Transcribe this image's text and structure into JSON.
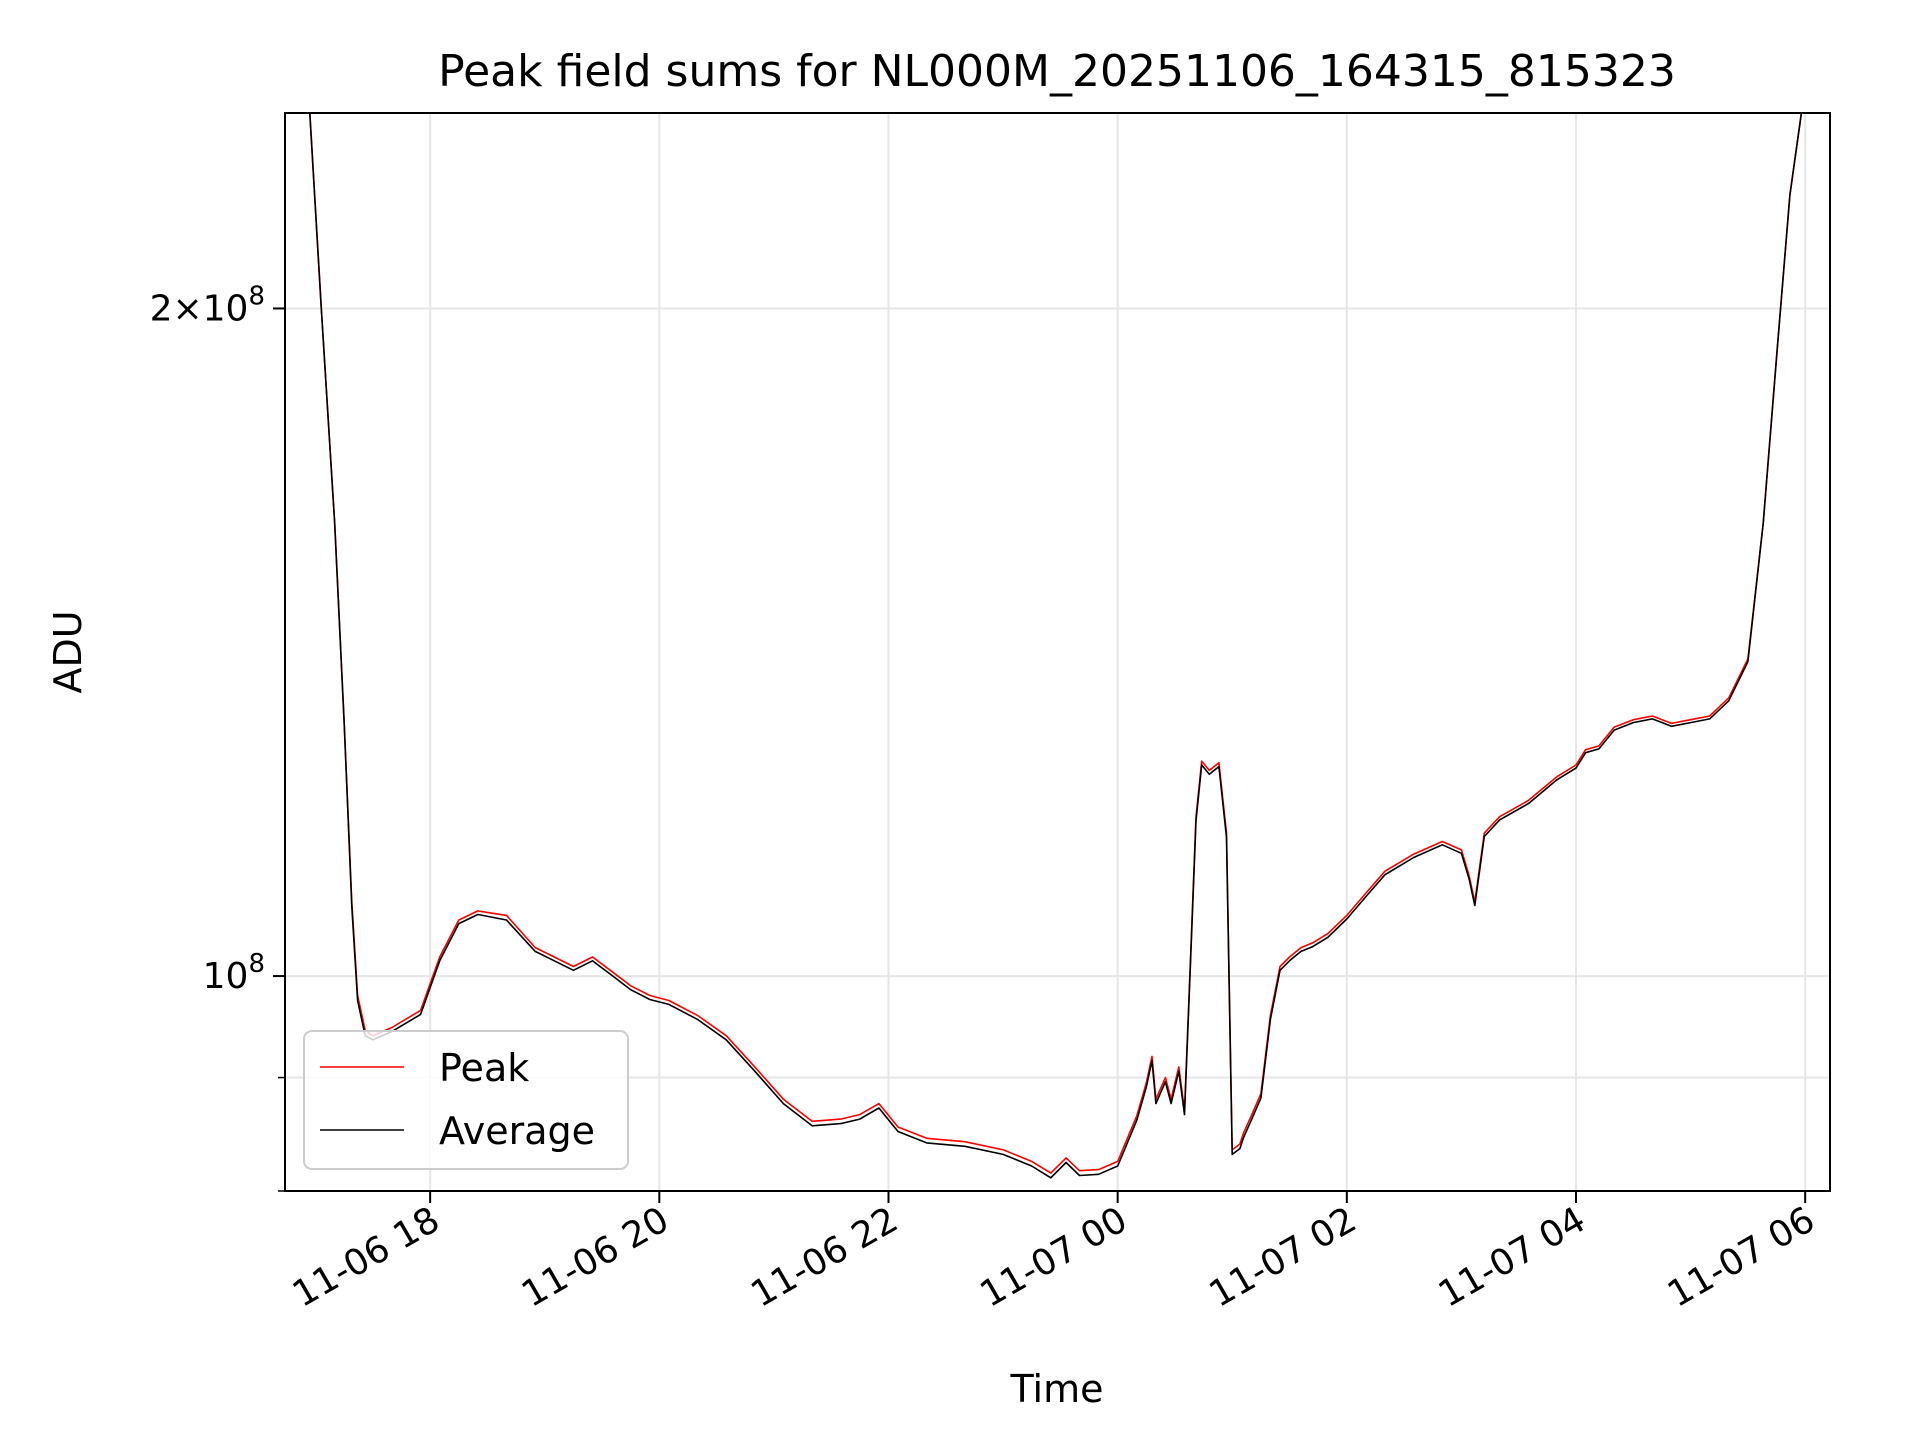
{
  "chart_data": {
    "type": "line",
    "title": "Peak field sums for NL000M_20251106_164315_815323",
    "xlabel": "Time",
    "ylabel": "ADU",
    "yscale": "log",
    "grid": true,
    "legend_placement": "lower-left",
    "xlim": [
      "2025-11-06 16:44",
      "2025-11-07 06:13"
    ],
    "ylim": [
      80000000,
      245000000
    ],
    "x_ticks": [
      {
        "value": "2025-11-06 18:00",
        "label": "11-06 18"
      },
      {
        "value": "2025-11-06 20:00",
        "label": "11-06 20"
      },
      {
        "value": "2025-11-06 22:00",
        "label": "11-06 22"
      },
      {
        "value": "2025-11-07 00:00",
        "label": "11-07 00"
      },
      {
        "value": "2025-11-07 02:00",
        "label": "11-07 02"
      },
      {
        "value": "2025-11-07 04:00",
        "label": "11-07 04"
      },
      {
        "value": "2025-11-07 06:00",
        "label": "11-07 06"
      }
    ],
    "y_major_ticks": [
      {
        "value": 100000000,
        "base": "10",
        "exp": "8"
      },
      {
        "value": 200000000,
        "base": "2×10",
        "exp": "8"
      }
    ],
    "y_minor_ticks": [
      80000000,
      90000000
    ],
    "series": [
      {
        "name": "Peak",
        "color": "#ff0000",
        "x": [
          "2025-11-06 16:44",
          "2025-11-06 16:57",
          "2025-11-06 17:03",
          "2025-11-06 17:10",
          "2025-11-06 17:15",
          "2025-11-06 17:19",
          "2025-11-06 17:22",
          "2025-11-06 17:26",
          "2025-11-06 17:30",
          "2025-11-06 17:40",
          "2025-11-06 17:55",
          "2025-11-06 18:05",
          "2025-11-06 18:15",
          "2025-11-06 18:25",
          "2025-11-06 18:40",
          "2025-11-06 18:55",
          "2025-11-06 19:05",
          "2025-11-06 19:15",
          "2025-11-06 19:25",
          "2025-11-06 19:35",
          "2025-11-06 19:45",
          "2025-11-06 19:55",
          "2025-11-06 20:05",
          "2025-11-06 20:20",
          "2025-11-06 20:35",
          "2025-11-06 20:50",
          "2025-11-06 21:05",
          "2025-11-06 21:20",
          "2025-11-06 21:35",
          "2025-11-06 21:45",
          "2025-11-06 21:55",
          "2025-11-06 22:05",
          "2025-11-06 22:20",
          "2025-11-06 22:40",
          "2025-11-06 23:00",
          "2025-11-06 23:15",
          "2025-11-06 23:25",
          "2025-11-06 23:33",
          "2025-11-06 23:40",
          "2025-11-06 23:50",
          "2025-11-07 00:00",
          "2025-11-07 00:10",
          "2025-11-07 00:15",
          "2025-11-07 00:18",
          "2025-11-07 00:20",
          "2025-11-07 00:25",
          "2025-11-07 00:28",
          "2025-11-07 00:32",
          "2025-11-07 00:35",
          "2025-11-07 00:38",
          "2025-11-07 00:41",
          "2025-11-07 00:44",
          "2025-11-07 00:48",
          "2025-11-07 00:53",
          "2025-11-07 00:57",
          "2025-11-07 01:00",
          "2025-11-07 01:04",
          "2025-11-07 01:06",
          "2025-11-07 01:10",
          "2025-11-07 01:15",
          "2025-11-07 01:20",
          "2025-11-07 01:25",
          "2025-11-07 01:30",
          "2025-11-07 01:36",
          "2025-11-07 01:42",
          "2025-11-07 01:50",
          "2025-11-07 02:00",
          "2025-11-07 02:10",
          "2025-11-07 02:20",
          "2025-11-07 02:35",
          "2025-11-07 02:50",
          "2025-11-07 03:00",
          "2025-11-07 03:04",
          "2025-11-07 03:07",
          "2025-11-07 03:12",
          "2025-11-07 03:20",
          "2025-11-07 03:35",
          "2025-11-07 03:50",
          "2025-11-07 04:00",
          "2025-11-07 04:05",
          "2025-11-07 04:12",
          "2025-11-07 04:20",
          "2025-11-07 04:30",
          "2025-11-07 04:40",
          "2025-11-07 04:50",
          "2025-11-07 05:00",
          "2025-11-07 05:10",
          "2025-11-07 05:20",
          "2025-11-07 05:30",
          "2025-11-07 05:38",
          "2025-11-07 05:45",
          "2025-11-07 05:52",
          "2025-11-07 05:58",
          "2025-11-07 06:05",
          "2025-11-07 06:13"
        ],
        "values": [
          245000000,
          245000000,
          200000000,
          160000000,
          130000000,
          108000000,
          98000000,
          94500000,
          94000000,
          94800000,
          96500000,
          102000000,
          106000000,
          107000000,
          106500000,
          103000000,
          102000000,
          101000000,
          102000000,
          100500000,
          99000000,
          98000000,
          97500000,
          96000000,
          94000000,
          91000000,
          88000000,
          86000000,
          86200000,
          86600000,
          87600000,
          85500000,
          84500000,
          84200000,
          83500000,
          82500000,
          81500000,
          82800000,
          81700000,
          81800000,
          82500000,
          86500000,
          89500000,
          92000000,
          88000000,
          90000000,
          88000000,
          91000000,
          87000000,
          101000000,
          118000000,
          125000000,
          123800000,
          124800000,
          116000000,
          83500000,
          84000000,
          85000000,
          86500000,
          88500000,
          96000000,
          101000000,
          102000000,
          103000000,
          103500000,
          104500000,
          106500000,
          109000000,
          111500000,
          113500000,
          115000000,
          114000000,
          111000000,
          108000000,
          116000000,
          118000000,
          120000000,
          123000000,
          124500000,
          126500000,
          127000000,
          129500000,
          130500000,
          131000000,
          130000000,
          130500000,
          131000000,
          133500000,
          139000000,
          160000000,
          190000000,
          225000000,
          245000000,
          245000000,
          245000000
        ]
      },
      {
        "name": "Average",
        "color": "#000000",
        "x": [
          "2025-11-06 16:44",
          "2025-11-06 16:57",
          "2025-11-06 17:03",
          "2025-11-06 17:10",
          "2025-11-06 17:15",
          "2025-11-06 17:19",
          "2025-11-06 17:22",
          "2025-11-06 17:26",
          "2025-11-06 17:30",
          "2025-11-06 17:40",
          "2025-11-06 17:55",
          "2025-11-06 18:05",
          "2025-11-06 18:15",
          "2025-11-06 18:25",
          "2025-11-06 18:40",
          "2025-11-06 18:55",
          "2025-11-06 19:05",
          "2025-11-06 19:15",
          "2025-11-06 19:25",
          "2025-11-06 19:35",
          "2025-11-06 19:45",
          "2025-11-06 19:55",
          "2025-11-06 20:05",
          "2025-11-06 20:20",
          "2025-11-06 20:35",
          "2025-11-06 20:50",
          "2025-11-06 21:05",
          "2025-11-06 21:20",
          "2025-11-06 21:35",
          "2025-11-06 21:45",
          "2025-11-06 21:55",
          "2025-11-06 22:05",
          "2025-11-06 22:20",
          "2025-11-06 22:40",
          "2025-11-06 23:00",
          "2025-11-06 23:15",
          "2025-11-06 23:25",
          "2025-11-06 23:33",
          "2025-11-06 23:40",
          "2025-11-06 23:50",
          "2025-11-07 00:00",
          "2025-11-07 00:10",
          "2025-11-07 00:15",
          "2025-11-07 00:18",
          "2025-11-07 00:20",
          "2025-11-07 00:25",
          "2025-11-07 00:28",
          "2025-11-07 00:32",
          "2025-11-07 00:35",
          "2025-11-07 00:38",
          "2025-11-07 00:41",
          "2025-11-07 00:44",
          "2025-11-07 00:48",
          "2025-11-07 00:53",
          "2025-11-07 00:57",
          "2025-11-07 01:00",
          "2025-11-07 01:04",
          "2025-11-07 01:06",
          "2025-11-07 01:10",
          "2025-11-07 01:15",
          "2025-11-07 01:20",
          "2025-11-07 01:25",
          "2025-11-07 01:30",
          "2025-11-07 01:36",
          "2025-11-07 01:42",
          "2025-11-07 01:50",
          "2025-11-07 02:00",
          "2025-11-07 02:10",
          "2025-11-07 02:20",
          "2025-11-07 02:35",
          "2025-11-07 02:50",
          "2025-11-07 03:00",
          "2025-11-07 03:04",
          "2025-11-07 03:07",
          "2025-11-07 03:12",
          "2025-11-07 03:20",
          "2025-11-07 03:35",
          "2025-11-07 03:50",
          "2025-11-07 04:00",
          "2025-11-07 04:05",
          "2025-11-07 04:12",
          "2025-11-07 04:20",
          "2025-11-07 04:30",
          "2025-11-07 04:40",
          "2025-11-07 04:50",
          "2025-11-07 05:00",
          "2025-11-07 05:10",
          "2025-11-07 05:20",
          "2025-11-07 05:30",
          "2025-11-07 05:38",
          "2025-11-07 05:45",
          "2025-11-07 05:52",
          "2025-11-07 05:58",
          "2025-11-07 06:05",
          "2025-11-07 06:13"
        ],
        "values": [
          245000000,
          245000000,
          200000000,
          160000000,
          130000000,
          107500000,
          97500000,
          94000000,
          93600000,
          94400000,
          96100000,
          101600000,
          105600000,
          106600000,
          106000000,
          102600000,
          101600000,
          100600000,
          101600000,
          100100000,
          98600000,
          97600000,
          97100000,
          95600000,
          93600000,
          90600000,
          87600000,
          85600000,
          85800000,
          86200000,
          87200000,
          85100000,
          84100000,
          83800000,
          83100000,
          82100000,
          81100000,
          82400000,
          81300000,
          81400000,
          82100000,
          86100000,
          89100000,
          91600000,
          87600000,
          89600000,
          87600000,
          90600000,
          86600000,
          100600000,
          117500000,
          124500000,
          123300000,
          124300000,
          115500000,
          83100000,
          83600000,
          84600000,
          86100000,
          88100000,
          95600000,
          100600000,
          101600000,
          102600000,
          103100000,
          104100000,
          106100000,
          108600000,
          111100000,
          113100000,
          114600000,
          113600000,
          110600000,
          107600000,
          115600000,
          117600000,
          119600000,
          122600000,
          124100000,
          126100000,
          126600000,
          129100000,
          130100000,
          130600000,
          129600000,
          130100000,
          130600000,
          133100000,
          138600000,
          160000000,
          190000000,
          225000000,
          245000000,
          245000000,
          245000000
        ]
      }
    ]
  }
}
